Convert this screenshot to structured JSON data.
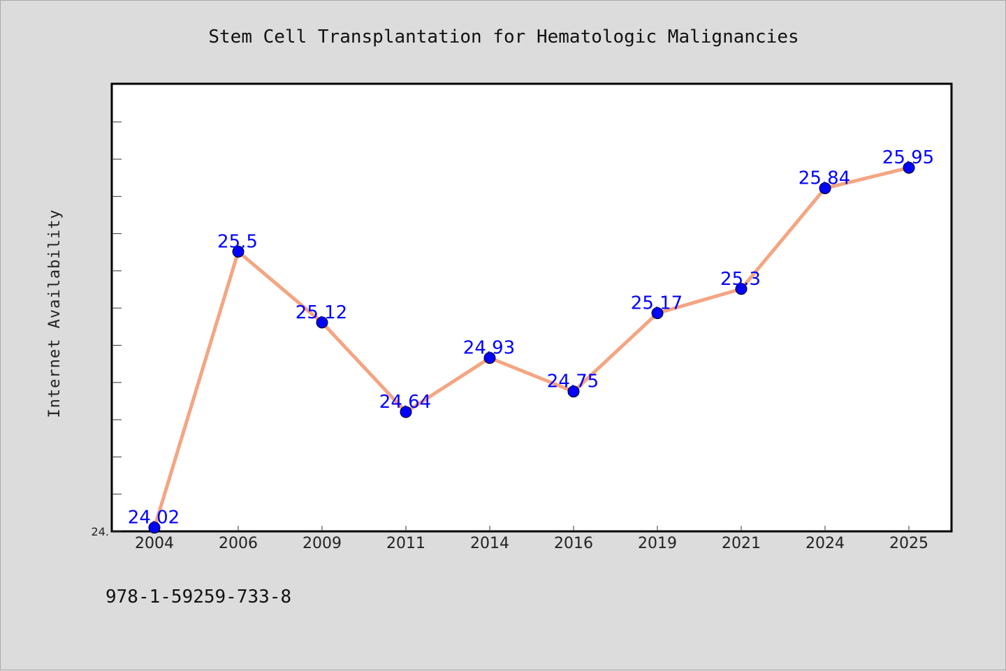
{
  "chart_data": {
    "type": "line",
    "title": "Stem Cell Transplantation for Hematologic Malignancies",
    "xlabel": "",
    "ylabel": "Internet Availability",
    "categories": [
      "2004",
      "2006",
      "2009",
      "2011",
      "2014",
      "2016",
      "2019",
      "2021",
      "2024",
      "2025"
    ],
    "values": [
      24.02,
      25.5,
      25.12,
      24.64,
      24.93,
      24.75,
      25.17,
      25.3,
      25.84,
      25.95
    ],
    "value_labels": [
      "24.02",
      "25.5",
      "25.12",
      "24.64",
      "24.93",
      "24.75",
      "25.17",
      "25.3",
      "25.84",
      "25.95"
    ],
    "y_tick_labels": [
      "24."
    ],
    "ylim": [
      24.0,
      26.4
    ],
    "grid": false,
    "legend": "none",
    "colors": {
      "line": "#f4a582",
      "marker": "#0000ff",
      "labels": "#0000ff",
      "background": "#dcdcdc",
      "plot_background": "#ffffff"
    }
  },
  "footer": {
    "isbn": "978-1-59259-733-8"
  }
}
